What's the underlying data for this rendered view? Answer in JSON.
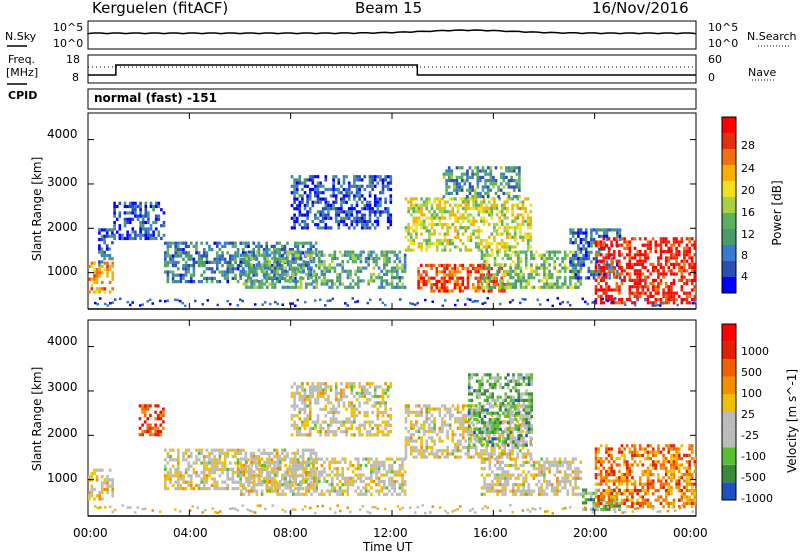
{
  "header": {
    "station": "Kerguelen (fitACF)",
    "beam": "Beam 15",
    "date": "16/Nov/2016"
  },
  "strip": {
    "nsky_label": "N.Sky",
    "nsky_ticks": [
      "10^5",
      "10^0"
    ],
    "nsearch_label": "N.Search",
    "nsearch_ticks": [
      "10^5",
      "10^0"
    ],
    "freq_label_1": "Freq.",
    "freq_label_2": "[MHz]",
    "freq_ticks": [
      "18",
      "8"
    ],
    "nave_label": "Nave",
    "nave_ticks": [
      "60",
      "0"
    ],
    "cpid_label": "CPID",
    "cpid_text": "normal (fast) -151"
  },
  "chart_data": [
    {
      "type": "heatmap",
      "name": "power-panel",
      "ylabel": "Slant Range [km]",
      "yticks": [
        "4000",
        "3000",
        "2000",
        "1000"
      ],
      "ylim": [
        180,
        4600
      ],
      "colorbar": {
        "label": "Power [dB]",
        "ticks": [
          "28",
          "24",
          "20",
          "16",
          "12",
          "8",
          "4"
        ],
        "colors": [
          "#0000ff",
          "#2a4fb0",
          "#3a7ad0",
          "#4a9a6a",
          "#58b060",
          "#a8d040",
          "#f0e020",
          "#f8b000",
          "#f07010",
          "#e03010",
          "#ff0000"
        ]
      },
      "regions": [
        {
          "t0": 0.0,
          "t1": 1.0,
          "r0": 600,
          "r1": 1250,
          "level": 0.7
        },
        {
          "t0": 0.4,
          "t1": 1.0,
          "r0": 1200,
          "r1": 2000,
          "level": 0.2
        },
        {
          "t0": 1.0,
          "t1": 3.0,
          "r0": 1800,
          "r1": 2600,
          "level": 0.15
        },
        {
          "t0": 3.0,
          "t1": 9.0,
          "r0": 800,
          "r1": 1700,
          "level": 0.25
        },
        {
          "t0": 6.0,
          "t1": 12.5,
          "r0": 700,
          "r1": 1500,
          "level": 0.35
        },
        {
          "t0": 8.0,
          "t1": 12.0,
          "r0": 2000,
          "r1": 3200,
          "level": 0.15
        },
        {
          "t0": 12.5,
          "t1": 17.5,
          "r0": 1500,
          "r1": 2700,
          "level": 0.55
        },
        {
          "t0": 13.0,
          "t1": 16.5,
          "r0": 600,
          "r1": 1200,
          "level": 0.85
        },
        {
          "t0": 14.0,
          "t1": 17.0,
          "r0": 2700,
          "r1": 3400,
          "level": 0.3
        },
        {
          "t0": 15.5,
          "t1": 19.5,
          "r0": 700,
          "r1": 1500,
          "level": 0.45
        },
        {
          "t0": 19.0,
          "t1": 21.0,
          "r0": 900,
          "r1": 2000,
          "level": 0.2
        },
        {
          "t0": 20.0,
          "t1": 24.0,
          "r0": 300,
          "r1": 1800,
          "level": 0.92
        }
      ]
    },
    {
      "type": "heatmap",
      "name": "velocity-panel",
      "ylabel": "Slant Range [km]",
      "yticks": [
        "4000",
        "3000",
        "2000",
        "1000"
      ],
      "ylim": [
        180,
        4600
      ],
      "colorbar": {
        "label": "Velocity [m s^-1]",
        "ticks": [
          "1000",
          "500",
          "100",
          "25",
          "-25",
          "-100",
          "-500",
          "-1000"
        ],
        "colors": [
          "#2050c0",
          "#3a8a3a",
          "#58c030",
          "#bbbbbb",
          "#bbbbbb",
          "#f0c000",
          "#f09000",
          "#f06000",
          "#e02000",
          "#ff0000"
        ]
      },
      "regions": [
        {
          "t0": 0.0,
          "t1": 1.0,
          "r0": 600,
          "r1": 1250,
          "level": 0.5
        },
        {
          "t0": 2.0,
          "t1": 3.0,
          "r0": 2000,
          "r1": 2700,
          "level": 0.8
        },
        {
          "t0": 3.0,
          "t1": 9.0,
          "r0": 800,
          "r1": 1700,
          "level": 0.45
        },
        {
          "t0": 6.0,
          "t1": 12.5,
          "r0": 700,
          "r1": 1500,
          "level": 0.45
        },
        {
          "t0": 8.0,
          "t1": 12.0,
          "r0": 2000,
          "r1": 3200,
          "level": 0.45
        },
        {
          "t0": 12.5,
          "t1": 17.5,
          "r0": 1500,
          "r1": 2700,
          "level": 0.45
        },
        {
          "t0": 15.0,
          "t1": 17.5,
          "r0": 1800,
          "r1": 3400,
          "level": 0.25
        },
        {
          "t0": 15.5,
          "t1": 19.5,
          "r0": 700,
          "r1": 1500,
          "level": 0.45
        },
        {
          "t0": 19.5,
          "t1": 21.0,
          "r0": 300,
          "r1": 800,
          "level": 0.25
        },
        {
          "t0": 20.0,
          "t1": 24.0,
          "r0": 400,
          "r1": 1800,
          "level": 0.7
        }
      ]
    }
  ],
  "xaxis": {
    "label": "Time UT",
    "ticks": [
      "00:00",
      "04:00",
      "08:00",
      "12:00",
      "16:00",
      "20:00",
      "00:00"
    ]
  }
}
